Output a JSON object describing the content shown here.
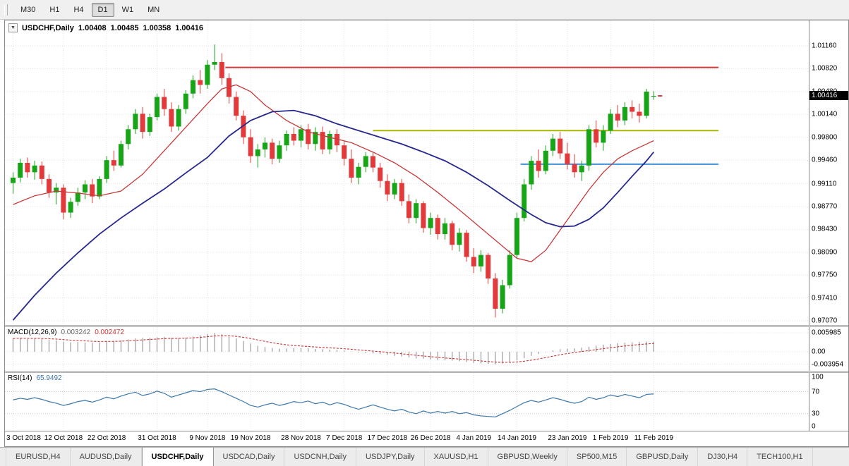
{
  "toolbar": {
    "timeframes": [
      {
        "label": "M30",
        "active": false
      },
      {
        "label": "H1",
        "active": false
      },
      {
        "label": "H4",
        "active": false
      },
      {
        "label": "D1",
        "active": true
      },
      {
        "label": "W1",
        "active": false
      },
      {
        "label": "MN",
        "active": false
      }
    ]
  },
  "chart": {
    "symbol_label": "USDCHF,Daily",
    "ohlc": {
      "open": "1.00408",
      "high": "1.00485",
      "low": "1.00358",
      "close": "1.00416"
    },
    "price_badge": "1.00416",
    "price_axis": [
      "1.01160",
      "1.00820",
      "1.00480",
      "1.00140",
      "0.99800",
      "0.99460",
      "0.99110",
      "0.98770",
      "0.98430",
      "0.98090",
      "0.97750",
      "0.97410",
      "0.97070"
    ]
  },
  "macd_panel": {
    "label": "MACD(12,26,9)",
    "value_main": "0.003242",
    "value_signal": "0.002472",
    "axis": [
      "0.005985",
      "0.00",
      "-0.003954"
    ]
  },
  "rsi_panel": {
    "label": "RSI(14)",
    "value": "65.9492",
    "axis": [
      "100",
      "70",
      "30",
      "0"
    ]
  },
  "tabs": [
    {
      "label": "EURUSD,H4",
      "active": false
    },
    {
      "label": "AUDUSD,Daily",
      "active": false
    },
    {
      "label": "USDCHF,Daily",
      "active": true
    },
    {
      "label": "USDCAD,Daily",
      "active": false
    },
    {
      "label": "USDCNH,Daily",
      "active": false
    },
    {
      "label": "USDJPY,Daily",
      "active": false
    },
    {
      "label": "XAUUSD,H1",
      "active": false
    },
    {
      "label": "GBPUSD,Weekly",
      "active": false
    },
    {
      "label": "SP500,M15",
      "active": false
    },
    {
      "label": "GBPUSD,Daily",
      "active": false
    },
    {
      "label": "DJ30,H4",
      "active": false
    },
    {
      "label": "TECH100,H1",
      "active": false
    }
  ],
  "chart_data": {
    "type": "candlestick",
    "title": "USDCHF, Daily",
    "symbol": "USDCHF",
    "timeframe": "Daily",
    "last_ohlc": {
      "open": 1.00408,
      "high": 1.00485,
      "low": 1.00358,
      "close": 1.00416
    },
    "last_price": 1.00416,
    "ylim": [
      0.97008,
      1.01538
    ],
    "colors": {
      "up": "#17a417",
      "down": "#e23a3a",
      "grid": "#e2e2e2"
    },
    "plot": {
      "left_pad": 8,
      "spacing": 10.2,
      "body_width": 7
    },
    "x_tick_labels": [
      "3 Oct 2018",
      "12 Oct 2018",
      "22 Oct 2018",
      "31 Oct 2018",
      "9 Nov 2018",
      "19 Nov 2018",
      "28 Nov 2018",
      "7 Dec 2018",
      "17 Dec 2018",
      "26 Dec 2018",
      "4 Jan 2019",
      "14 Jan 2019",
      "23 Jan 2019",
      "1 Feb 2019",
      "11 Feb 2019"
    ],
    "x_tick_indices": [
      0,
      7,
      13,
      20,
      27,
      33,
      40,
      46,
      52,
      58,
      64,
      70,
      77,
      83,
      89
    ],
    "candles": [
      [
        0.9912,
        0.9928,
        0.9896,
        0.992
      ],
      [
        0.992,
        0.9948,
        0.9913,
        0.9942
      ],
      [
        0.9942,
        0.995,
        0.992,
        0.9928
      ],
      [
        0.9928,
        0.9945,
        0.9917,
        0.9938
      ],
      [
        0.9938,
        0.9944,
        0.991,
        0.9918
      ],
      [
        0.9918,
        0.9925,
        0.989,
        0.9898
      ],
      [
        0.9898,
        0.9912,
        0.988,
        0.9905
      ],
      [
        0.9905,
        0.991,
        0.9858,
        0.9868
      ],
      [
        0.9868,
        0.989,
        0.986,
        0.9884
      ],
      [
        0.9884,
        0.9905,
        0.9878,
        0.9898
      ],
      [
        0.9898,
        0.9916,
        0.9888,
        0.991
      ],
      [
        0.991,
        0.9918,
        0.9882,
        0.9892
      ],
      [
        0.9892,
        0.9922,
        0.9888,
        0.9918
      ],
      [
        0.9918,
        0.9952,
        0.9912,
        0.9946
      ],
      [
        0.9946,
        0.996,
        0.993,
        0.9938
      ],
      [
        0.9938,
        0.9975,
        0.9935,
        0.997
      ],
      [
        0.997,
        0.9998,
        0.9962,
        0.9992
      ],
      [
        0.9992,
        1.0022,
        0.9985,
        1.0015
      ],
      [
        1.0015,
        1.0025,
        0.9978,
        0.9988
      ],
      [
        0.9988,
        1.0015,
        0.9982,
        1.001
      ],
      [
        1.001,
        1.0045,
        1.0005,
        1.004
      ],
      [
        1.004,
        1.0052,
        1.0012,
        1.0022
      ],
      [
        1.0022,
        1.0032,
        0.9988,
        0.9996
      ],
      [
        0.9996,
        1.0028,
        0.999,
        1.0022
      ],
      [
        1.0022,
        1.005,
        1.0015,
        1.0045
      ],
      [
        1.0045,
        1.0072,
        1.0038,
        1.0065
      ],
      [
        1.0065,
        1.008,
        1.0045,
        1.0058
      ],
      [
        1.0058,
        1.0095,
        1.0052,
        1.0088
      ],
      [
        1.0088,
        1.0118,
        1.008,
        1.0092
      ],
      [
        1.0092,
        1.0105,
        1.0058,
        1.0068
      ],
      [
        1.0068,
        1.0075,
        1.003,
        1.004
      ],
      [
        1.004,
        1.0048,
        1.0005,
        1.0012
      ],
      [
        1.0012,
        1.002,
        0.997,
        0.998
      ],
      [
        0.998,
        0.9992,
        0.9942,
        0.9952
      ],
      [
        0.9952,
        0.997,
        0.9935,
        0.9962
      ],
      [
        0.9962,
        0.998,
        0.995,
        0.9972
      ],
      [
        0.9972,
        0.9978,
        0.994,
        0.9948
      ],
      [
        0.9948,
        0.9975,
        0.9942,
        0.9968
      ],
      [
        0.9968,
        0.999,
        0.996,
        0.9985
      ],
      [
        0.9985,
        0.9995,
        0.9968,
        0.9975
      ],
      [
        0.9975,
        0.9998,
        0.9965,
        0.9992
      ],
      [
        0.9992,
        1.0,
        0.9962,
        0.997
      ],
      [
        0.997,
        0.9995,
        0.996,
        0.9988
      ],
      [
        0.9988,
        0.9996,
        0.9955,
        0.9962
      ],
      [
        0.9962,
        0.999,
        0.9955,
        0.9985
      ],
      [
        0.9985,
        0.9992,
        0.9958,
        0.9968
      ],
      [
        0.9968,
        0.9975,
        0.9938,
        0.9948
      ],
      [
        0.9948,
        0.9962,
        0.9912,
        0.992
      ],
      [
        0.992,
        0.9942,
        0.991,
        0.9936
      ],
      [
        0.9936,
        0.9958,
        0.9928,
        0.9952
      ],
      [
        0.9952,
        0.9958,
        0.9928,
        0.9935
      ],
      [
        0.9935,
        0.9942,
        0.9905,
        0.9915
      ],
      [
        0.9915,
        0.9925,
        0.9885,
        0.9895
      ],
      [
        0.9895,
        0.9918,
        0.9888,
        0.9912
      ],
      [
        0.9912,
        0.9918,
        0.9878,
        0.9885
      ],
      [
        0.9885,
        0.9895,
        0.9852,
        0.986
      ],
      [
        0.986,
        0.9888,
        0.9852,
        0.9882
      ],
      [
        0.9882,
        0.9885,
        0.9838,
        0.9845
      ],
      [
        0.9845,
        0.9868,
        0.9835,
        0.986
      ],
      [
        0.986,
        0.9865,
        0.9828,
        0.9836
      ],
      [
        0.9836,
        0.986,
        0.9828,
        0.9852
      ],
      [
        0.9852,
        0.9856,
        0.9812,
        0.982
      ],
      [
        0.982,
        0.9845,
        0.981,
        0.9838
      ],
      [
        0.9838,
        0.9842,
        0.9795,
        0.9802
      ],
      [
        0.9802,
        0.9815,
        0.9778,
        0.9788
      ],
      [
        0.9788,
        0.9812,
        0.978,
        0.9805
      ],
      [
        0.9805,
        0.9808,
        0.9762,
        0.977
      ],
      [
        0.977,
        0.9778,
        0.9712,
        0.9725
      ],
      [
        0.9725,
        0.9768,
        0.9718,
        0.976
      ],
      [
        0.976,
        0.9812,
        0.9755,
        0.9805
      ],
      [
        0.9805,
        0.9868,
        0.98,
        0.986
      ],
      [
        0.986,
        0.9918,
        0.9855,
        0.991
      ],
      [
        0.991,
        0.9952,
        0.9902,
        0.9945
      ],
      [
        0.9945,
        0.9962,
        0.992,
        0.993
      ],
      [
        0.993,
        0.9968,
        0.9925,
        0.996
      ],
      [
        0.996,
        0.9985,
        0.9952,
        0.9978
      ],
      [
        0.9978,
        0.9988,
        0.9948,
        0.9956
      ],
      [
        0.9956,
        0.9972,
        0.9932,
        0.994
      ],
      [
        0.994,
        0.9955,
        0.992,
        0.9928
      ],
      [
        0.9928,
        0.9945,
        0.9915,
        0.9938
      ],
      [
        0.9938,
        0.9998,
        0.993,
        0.9992
      ],
      [
        0.9992,
        1.0005,
        0.9965,
        0.9972
      ],
      [
        0.9972,
        0.9998,
        0.996,
        0.999
      ],
      [
        0.999,
        1.0022,
        0.9985,
        1.0015
      ],
      [
        1.0015,
        1.0028,
        0.9995,
        1.0005
      ],
      [
        1.0005,
        1.0032,
        0.9998,
        1.0025
      ],
      [
        1.0025,
        1.0035,
        1.0008,
        1.0018
      ],
      [
        1.0018,
        1.003,
        1.0002,
        1.0012
      ],
      [
        1.0012,
        1.0052,
        1.0008,
        1.0048
      ],
      [
        1.00408,
        1.00485,
        1.00358,
        1.00416
      ]
    ],
    "moving_averages": [
      {
        "name": "fast-ma-line",
        "color": "#c83a3a",
        "width": 1.3,
        "points": [
          [
            0,
            0.988
          ],
          [
            3,
            0.9893
          ],
          [
            6,
            0.99
          ],
          [
            9,
            0.9897
          ],
          [
            12,
            0.9893
          ],
          [
            15,
            0.99
          ],
          [
            18,
            0.9925
          ],
          [
            21,
            0.996
          ],
          [
            24,
            0.9995
          ],
          [
            27,
            1.003
          ],
          [
            29,
            1.0052
          ],
          [
            31,
            1.0058
          ],
          [
            33,
            1.0048
          ],
          [
            35,
            1.0028
          ],
          [
            38,
            1.0005
          ],
          [
            41,
            0.9988
          ],
          [
            44,
            0.998
          ],
          [
            47,
            0.9972
          ],
          [
            50,
            0.9958
          ],
          [
            53,
            0.9942
          ],
          [
            56,
            0.9922
          ],
          [
            59,
            0.9898
          ],
          [
            62,
            0.9872
          ],
          [
            65,
            0.9845
          ],
          [
            68,
            0.9818
          ],
          [
            70,
            0.98
          ],
          [
            72,
            0.9795
          ],
          [
            74,
            0.9812
          ],
          [
            76,
            0.9842
          ],
          [
            78,
            0.9872
          ],
          [
            80,
            0.9902
          ],
          [
            82,
            0.9928
          ],
          [
            84,
            0.9948
          ],
          [
            86,
            0.996
          ],
          [
            88,
            0.997
          ],
          [
            89,
            0.9975
          ]
        ]
      },
      {
        "name": "slow-ma-line",
        "color": "#27278f",
        "width": 1.8,
        "points": [
          [
            0,
            0.9708
          ],
          [
            3,
            0.9745
          ],
          [
            6,
            0.9778
          ],
          [
            9,
            0.9808
          ],
          [
            12,
            0.9836
          ],
          [
            15,
            0.986
          ],
          [
            18,
            0.9882
          ],
          [
            21,
            0.9903
          ],
          [
            24,
            0.9927
          ],
          [
            27,
            0.995
          ],
          [
            30,
            0.9982
          ],
          [
            33,
            1.0005
          ],
          [
            36,
            1.0018
          ],
          [
            39,
            1.002
          ],
          [
            42,
            1.0012
          ],
          [
            45,
            1.0
          ],
          [
            48,
            0.999
          ],
          [
            51,
            0.998
          ],
          [
            54,
            0.997
          ],
          [
            57,
            0.9958
          ],
          [
            60,
            0.9945
          ],
          [
            63,
            0.9928
          ],
          [
            66,
            0.9908
          ],
          [
            69,
            0.9886
          ],
          [
            72,
            0.9865
          ],
          [
            74,
            0.9853
          ],
          [
            76,
            0.9847
          ],
          [
            78,
            0.9848
          ],
          [
            80,
            0.9858
          ],
          [
            82,
            0.9875
          ],
          [
            84,
            0.9898
          ],
          [
            86,
            0.9922
          ],
          [
            88,
            0.9945
          ],
          [
            89,
            0.9958
          ]
        ]
      }
    ],
    "hlines": [
      {
        "name": "resistance-hline",
        "color": "#d23b3b",
        "price": 1.0084,
        "from_index": 29.5,
        "to_index": 98,
        "width": 2
      },
      {
        "name": "breakout-hline",
        "color": "#aab800",
        "price": 0.999,
        "from_index": 50,
        "to_index": 98,
        "width": 2
      },
      {
        "name": "support-hline",
        "color": "#3e8ed8",
        "price": 0.994,
        "from_index": 70.5,
        "to_index": 98,
        "width": 2
      }
    ],
    "indicators": {
      "macd": {
        "name": "MACD(12,26,9)",
        "ylim": [
          -0.005994,
          0.00777
        ],
        "histogram_color": "#a9a9a9",
        "signal_color": "#cc3333",
        "signal_period": 9,
        "values": [
          0.0042,
          0.0044,
          0.004,
          0.0043,
          0.0041,
          0.0038,
          0.0036,
          0.0032,
          0.003,
          0.0031,
          0.0029,
          0.0028,
          0.003,
          0.0033,
          0.0034,
          0.0036,
          0.0039,
          0.0042,
          0.0043,
          0.0044,
          0.0046,
          0.0047,
          0.0044,
          0.0043,
          0.0045,
          0.0048,
          0.0052,
          0.0056,
          0.0059,
          0.0055,
          0.0048,
          0.0042,
          0.0034,
          0.0026,
          0.0019,
          0.0015,
          0.0012,
          0.001,
          0.001,
          0.0011,
          0.0012,
          0.0011,
          0.0009,
          0.0008,
          0.0007,
          0.0006,
          0.0004,
          0.0001,
          -0.0002,
          -0.0004,
          -0.0005,
          -0.0007,
          -0.001,
          -0.0013,
          -0.0015,
          -0.0018,
          -0.0021,
          -0.0022,
          -0.0024,
          -0.0026,
          -0.0027,
          -0.0028,
          -0.003,
          -0.0032,
          -0.0035,
          -0.0037,
          -0.0038,
          -0.00395,
          -0.0037,
          -0.0033,
          -0.0027,
          -0.002,
          -0.0013,
          -0.0007,
          -0.0001,
          0.0004,
          0.0008,
          0.001,
          0.0011,
          0.0013,
          0.0016,
          0.0019,
          0.0022,
          0.0025,
          0.0027,
          0.0029,
          0.003,
          0.0031,
          0.0032,
          0.003242
        ]
      },
      "rsi": {
        "name": "RSI(14)",
        "ylim": [
          -1,
          104
        ],
        "color": "#3b77ad",
        "levels": [
          70,
          30
        ],
        "values": [
          55,
          58,
          56,
          59,
          56,
          52,
          49,
          45,
          48,
          52,
          54,
          51,
          55,
          60,
          57,
          62,
          66,
          69,
          63,
          66,
          71,
          67,
          60,
          64,
          68,
          72,
          70,
          74,
          75,
          70,
          64,
          58,
          52,
          45,
          42,
          46,
          49,
          45,
          48,
          52,
          50,
          53,
          48,
          51,
          46,
          50,
          47,
          42,
          38,
          42,
          46,
          42,
          38,
          35,
          38,
          33,
          30,
          35,
          31,
          34,
          31,
          34,
          30,
          32,
          28,
          26,
          25,
          24,
          30,
          36,
          43,
          50,
          54,
          51,
          55,
          59,
          56,
          52,
          49,
          52,
          60,
          56,
          59,
          64,
          61,
          65,
          62,
          59,
          65,
          65.95
        ]
      }
    }
  }
}
